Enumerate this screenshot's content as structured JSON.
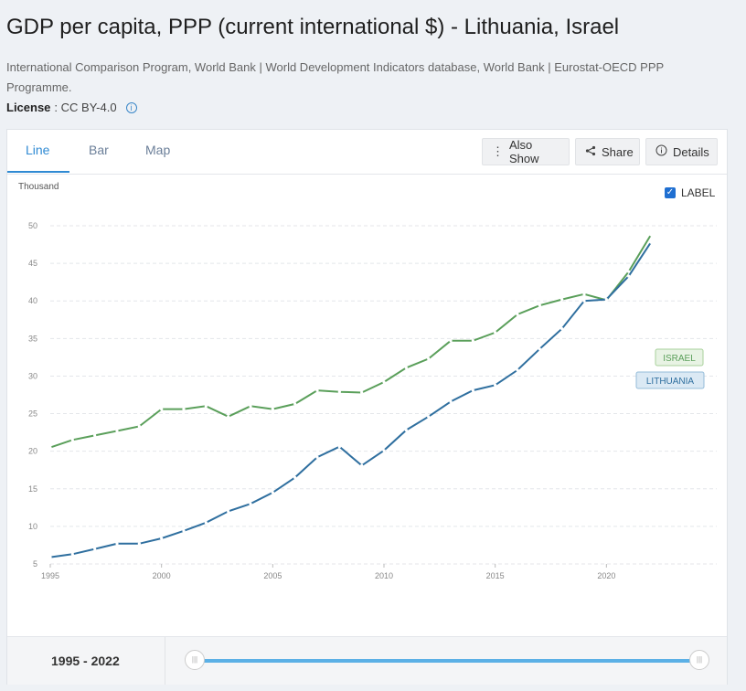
{
  "header": {
    "title": "GDP per capita, PPP (current international $) - Lithuania, Israel",
    "sources": "International Comparison Program, World Bank | World Development Indicators database, World Bank | Eurostat-OECD PPP Programme.",
    "license_label": "License",
    "license_value": ": CC BY-4.0"
  },
  "tabs": [
    {
      "label": "Line",
      "active": true
    },
    {
      "label": "Bar",
      "active": false
    },
    {
      "label": "Map",
      "active": false
    }
  ],
  "toolbar": {
    "also_show": "Also Show",
    "share": "Share",
    "details": "Details"
  },
  "label_toggle": {
    "text": "LABEL",
    "checked": true
  },
  "footer": {
    "range_start": "1995",
    "range_sep": " - ",
    "range_end": "2022"
  },
  "chart_data": {
    "type": "line",
    "unit_label": "Thousand",
    "x": [
      1995,
      1996,
      1997,
      1998,
      1999,
      2000,
      2001,
      2002,
      2003,
      2004,
      2005,
      2006,
      2007,
      2008,
      2009,
      2010,
      2011,
      2012,
      2013,
      2014,
      2015,
      2016,
      2017,
      2018,
      2019,
      2020,
      2021,
      2022
    ],
    "series": [
      {
        "name": "ISRAEL",
        "color": "#5a9f5a",
        "values": [
          20.5,
          21.5,
          22.1,
          22.7,
          23.3,
          25.6,
          25.6,
          26.0,
          24.6,
          26.0,
          25.6,
          26.3,
          28.1,
          27.9,
          27.8,
          29.2,
          31.1,
          32.3,
          34.7,
          34.7,
          35.8,
          38.2,
          39.4,
          40.2,
          40.9,
          40.1,
          43.9,
          48.8
        ]
      },
      {
        "name": "LITHUANIA",
        "color": "#2f6f9f",
        "values": [
          5.9,
          6.3,
          7.0,
          7.7,
          7.7,
          8.4,
          9.4,
          10.5,
          12.0,
          13.0,
          14.5,
          16.5,
          19.2,
          20.6,
          18.1,
          20.1,
          22.8,
          24.6,
          26.6,
          28.1,
          28.8,
          30.8,
          33.6,
          36.3,
          40.0,
          40.2,
          43.3,
          47.8
        ]
      }
    ],
    "y_ticks": [
      5,
      10,
      15,
      20,
      25,
      30,
      35,
      40,
      45,
      50
    ],
    "x_ticks": [
      1995,
      2000,
      2005,
      2010,
      2015,
      2020
    ],
    "ylim": [
      5,
      50
    ],
    "xlim": [
      1995,
      2022
    ],
    "grid": true
  }
}
